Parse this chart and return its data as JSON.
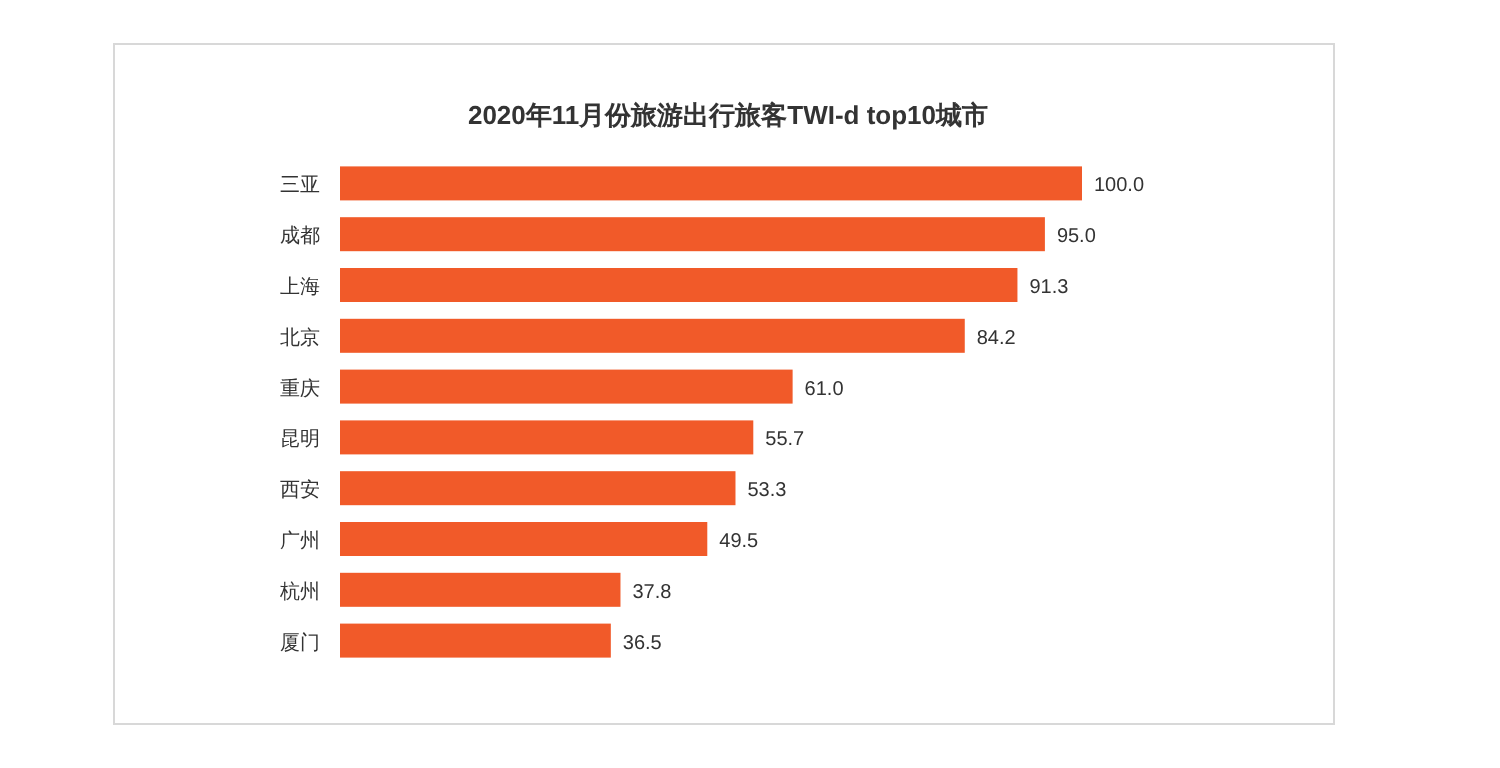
{
  "chart_data": {
    "type": "bar",
    "orientation": "horizontal",
    "title": "2020年11月份旅游出行旅客TWI-d top10城市",
    "categories": [
      "三亚",
      "成都",
      "上海",
      "北京",
      "重庆",
      "昆明",
      "西安",
      "广州",
      "杭州",
      "厦门"
    ],
    "values": [
      100.0,
      95.0,
      91.3,
      84.2,
      61.0,
      55.7,
      53.3,
      49.5,
      37.8,
      36.5
    ],
    "value_labels": [
      "100.0",
      "95.0",
      "91.3",
      "84.2",
      "61.0",
      "55.7",
      "53.3",
      "49.5",
      "37.8",
      "36.5"
    ],
    "color": "#f15a29"
  }
}
